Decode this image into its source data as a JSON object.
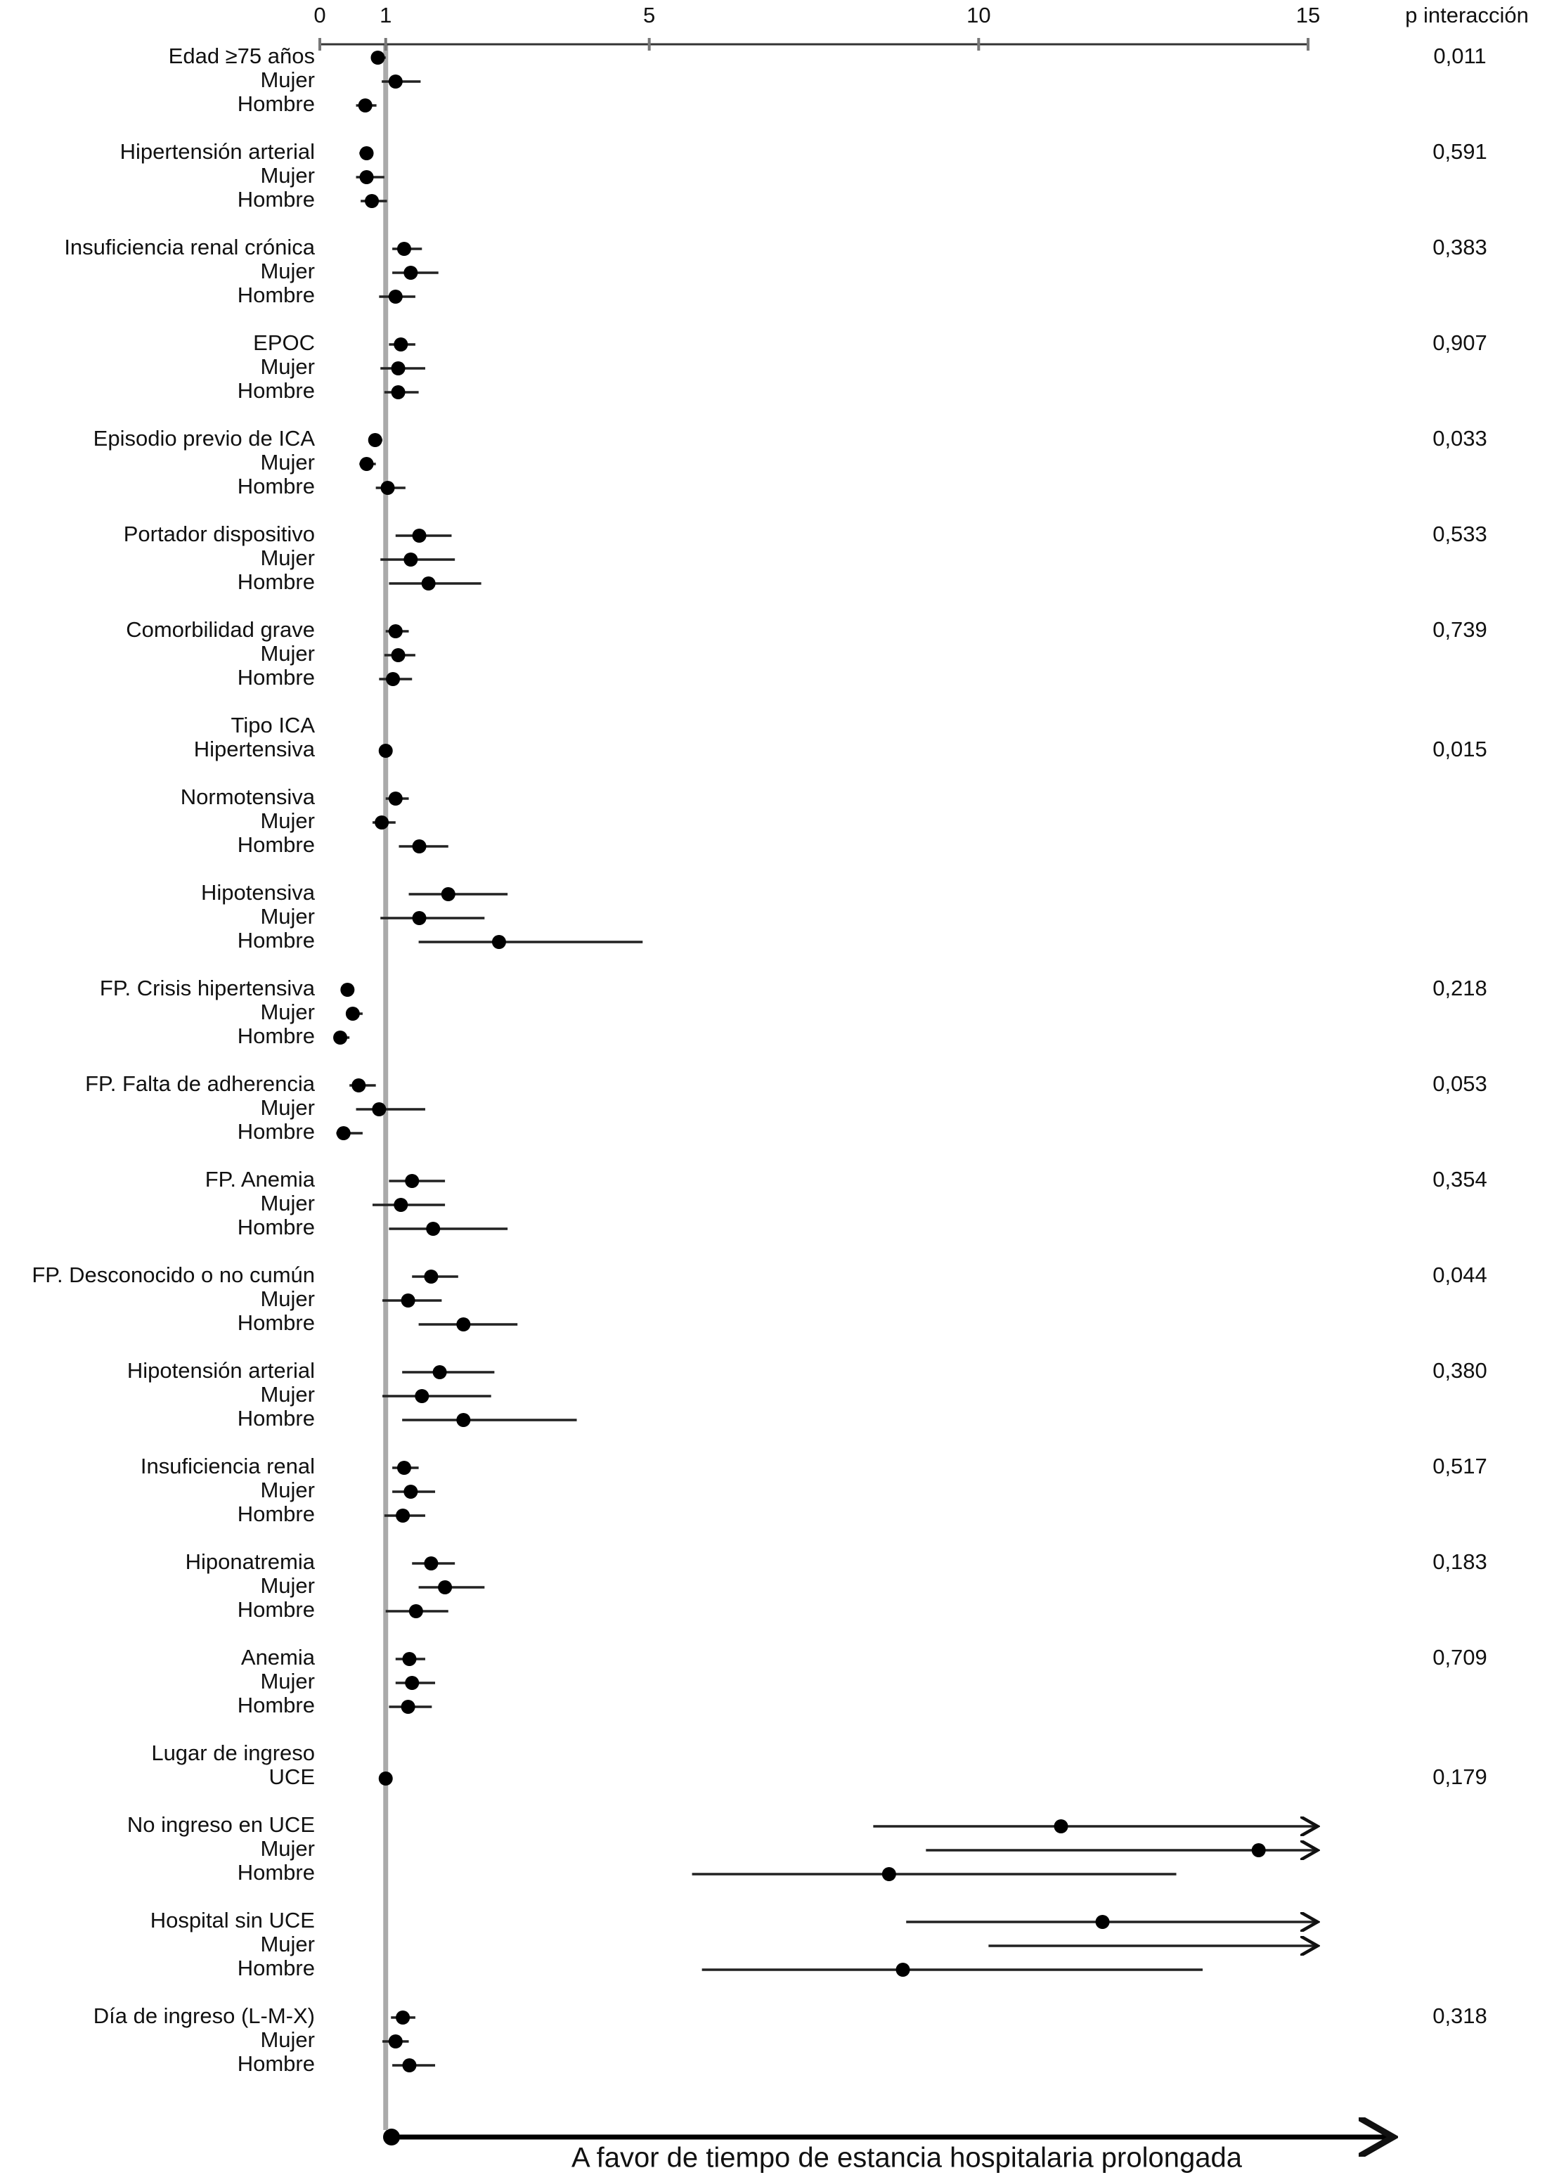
{
  "chart_data": {
    "type": "forest",
    "xlim": [
      0,
      15
    ],
    "xticks": [
      0,
      1,
      5,
      10,
      15
    ],
    "reference": 1,
    "p_header": "p interacción",
    "x_label": "A favor de tiempo de estancia hospitalaria prolongada",
    "groups": [
      {
        "rows": [
          {
            "label": "Edad ≥75 años",
            "value": 0.88,
            "lower": 0.78,
            "upper": 1.0,
            "p": "0,011"
          },
          {
            "label": "Mujer",
            "value": 1.15,
            "lower": 0.94,
            "upper": 1.53
          },
          {
            "label": "Hombre",
            "value": 0.69,
            "lower": 0.55,
            "upper": 0.86
          }
        ]
      },
      {
        "rows": [
          {
            "label": "Hipertensión arterial",
            "value": 0.71,
            "lower": 0.6,
            "upper": 0.8,
            "p": "0,591"
          },
          {
            "label": "Mujer",
            "value": 0.71,
            "lower": 0.55,
            "upper": 0.98
          },
          {
            "label": "Hombre",
            "value": 0.79,
            "lower": 0.62,
            "upper": 1.02
          }
        ]
      },
      {
        "rows": [
          {
            "label": "Insuficiencia renal crónica",
            "value": 1.28,
            "lower": 1.1,
            "upper": 1.55,
            "p": "0,383"
          },
          {
            "label": "Mujer",
            "value": 1.38,
            "lower": 1.1,
            "upper": 1.8
          },
          {
            "label": "Hombre",
            "value": 1.15,
            "lower": 0.9,
            "upper": 1.45
          }
        ]
      },
      {
        "rows": [
          {
            "label": "EPOC",
            "value": 1.23,
            "lower": 1.05,
            "upper": 1.45,
            "p": "0,907"
          },
          {
            "label": "Mujer",
            "value": 1.19,
            "lower": 0.92,
            "upper": 1.6
          },
          {
            "label": "Hombre",
            "value": 1.19,
            "lower": 0.98,
            "upper": 1.5
          }
        ]
      },
      {
        "rows": [
          {
            "label": "Episodio previo de ICA",
            "value": 0.84,
            "lower": 0.75,
            "upper": 0.95,
            "p": "0,033"
          },
          {
            "label": "Mujer",
            "value": 0.71,
            "lower": 0.6,
            "upper": 0.85
          },
          {
            "label": "Hombre",
            "value": 1.03,
            "lower": 0.85,
            "upper": 1.3
          }
        ]
      },
      {
        "rows": [
          {
            "label": "Portador dispositivo",
            "value": 1.51,
            "lower": 1.15,
            "upper": 2.0,
            "p": "0,533"
          },
          {
            "label": "Mujer",
            "value": 1.38,
            "lower": 0.92,
            "upper": 2.05
          },
          {
            "label": "Hombre",
            "value": 1.65,
            "lower": 1.05,
            "upper": 2.45
          }
        ]
      },
      {
        "rows": [
          {
            "label": "Comorbilidad grave",
            "value": 1.15,
            "lower": 1.0,
            "upper": 1.35,
            "p": "0,739"
          },
          {
            "label": "Mujer",
            "value": 1.19,
            "lower": 0.98,
            "upper": 1.45
          },
          {
            "label": "Hombre",
            "value": 1.11,
            "lower": 0.9,
            "upper": 1.4
          }
        ]
      },
      {
        "rows": [
          {
            "label": "Tipo ICA"
          },
          {
            "label": "Hipertensiva",
            "value": 1.0,
            "p": "0,015"
          }
        ]
      },
      {
        "rows": [
          {
            "label": "Normotensiva",
            "value": 1.15,
            "lower": 1.0,
            "upper": 1.35
          },
          {
            "label": "Mujer",
            "value": 0.94,
            "lower": 0.8,
            "upper": 1.15
          },
          {
            "label": "Hombre",
            "value": 1.51,
            "lower": 1.2,
            "upper": 1.95
          }
        ]
      },
      {
        "rows": [
          {
            "label": "Hipotensiva",
            "value": 1.95,
            "lower": 1.35,
            "upper": 2.85
          },
          {
            "label": "Mujer",
            "value": 1.51,
            "lower": 0.92,
            "upper": 2.5
          },
          {
            "label": "Hombre",
            "value": 2.72,
            "lower": 1.5,
            "upper": 4.9
          }
        ]
      },
      {
        "rows": [
          {
            "label": "FP. Crisis hipertensiva",
            "value": 0.42,
            "lower": 0.35,
            "upper": 0.52,
            "p": "0,218"
          },
          {
            "label": "Mujer",
            "value": 0.5,
            "lower": 0.4,
            "upper": 0.65
          },
          {
            "label": "Hombre",
            "value": 0.31,
            "lower": 0.25,
            "upper": 0.45
          }
        ]
      },
      {
        "rows": [
          {
            "label": "FP. Falta de adherencia",
            "value": 0.59,
            "lower": 0.45,
            "upper": 0.85,
            "p": "0,053"
          },
          {
            "label": "Mujer",
            "value": 0.9,
            "lower": 0.55,
            "upper": 1.6
          },
          {
            "label": "Hombre",
            "value": 0.36,
            "lower": 0.25,
            "upper": 0.65
          }
        ]
      },
      {
        "rows": [
          {
            "label": "FP. Anemia",
            "value": 1.4,
            "lower": 1.05,
            "upper": 1.9,
            "p": "0,354"
          },
          {
            "label": "Mujer",
            "value": 1.23,
            "lower": 0.8,
            "upper": 1.9
          },
          {
            "label": "Hombre",
            "value": 1.72,
            "lower": 1.05,
            "upper": 2.85
          }
        ]
      },
      {
        "rows": [
          {
            "label": "FP. Desconocido o no cumún",
            "value": 1.69,
            "lower": 1.4,
            "upper": 2.1,
            "p": "0,044"
          },
          {
            "label": "Mujer",
            "value": 1.34,
            "lower": 0.95,
            "upper": 1.85
          },
          {
            "label": "Hombre",
            "value": 2.18,
            "lower": 1.5,
            "upper": 3.0
          }
        ]
      },
      {
        "rows": [
          {
            "label": "Hipotensión arterial",
            "value": 1.82,
            "lower": 1.25,
            "upper": 2.65,
            "p": "0,380"
          },
          {
            "label": "Mujer",
            "value": 1.55,
            "lower": 0.95,
            "upper": 2.6
          },
          {
            "label": "Hombre",
            "value": 2.18,
            "lower": 1.25,
            "upper": 3.9
          }
        ]
      },
      {
        "rows": [
          {
            "label": "Insuficiencia renal",
            "value": 1.28,
            "lower": 1.1,
            "upper": 1.5,
            "p": "0,517"
          },
          {
            "label": "Mujer",
            "value": 1.38,
            "lower": 1.1,
            "upper": 1.75
          },
          {
            "label": "Hombre",
            "value": 1.26,
            "lower": 0.98,
            "upper": 1.6
          }
        ]
      },
      {
        "rows": [
          {
            "label": "Hiponatremia",
            "value": 1.69,
            "lower": 1.4,
            "upper": 2.05,
            "p": "0,183"
          },
          {
            "label": "Mujer",
            "value": 1.9,
            "lower": 1.5,
            "upper": 2.5
          },
          {
            "label": "Hombre",
            "value": 1.46,
            "lower": 1.0,
            "upper": 1.95
          }
        ]
      },
      {
        "rows": [
          {
            "label": "Anemia",
            "value": 1.36,
            "lower": 1.15,
            "upper": 1.6,
            "p": "0,709"
          },
          {
            "label": "Mujer",
            "value": 1.4,
            "lower": 1.15,
            "upper": 1.75
          },
          {
            "label": "Hombre",
            "value": 1.34,
            "lower": 1.05,
            "upper": 1.7
          }
        ]
      },
      {
        "rows": [
          {
            "label": "Lugar de ingreso"
          },
          {
            "label": "UCE",
            "value": 1.0,
            "p": "0,179"
          }
        ]
      },
      {
        "rows": [
          {
            "label": "No ingreso en UCE",
            "value": 11.25,
            "lower": 8.4,
            "upper": null
          },
          {
            "label": "Mujer",
            "value": 14.25,
            "lower": 9.2,
            "upper": null
          },
          {
            "label": "Hombre",
            "value": 8.64,
            "lower": 5.65,
            "upper": 13.0
          }
        ]
      },
      {
        "rows": [
          {
            "label": "Hospital sin UCE",
            "value": 11.88,
            "lower": 8.9,
            "upper": null
          },
          {
            "label": "Mujer",
            "value": null,
            "lower": 10.15,
            "upper": null
          },
          {
            "label": "Hombre",
            "value": 8.85,
            "lower": 5.8,
            "upper": 13.4
          }
        ]
      },
      {
        "rows": [
          {
            "label": "Día de ingreso (L-M-X)",
            "value": 1.26,
            "lower": 1.08,
            "upper": 1.45,
            "p": "0,318"
          },
          {
            "label": "Mujer",
            "value": 1.15,
            "lower": 0.95,
            "upper": 1.35
          },
          {
            "label": "Hombre",
            "value": 1.36,
            "lower": 1.1,
            "upper": 1.75
          }
        ]
      }
    ]
  }
}
